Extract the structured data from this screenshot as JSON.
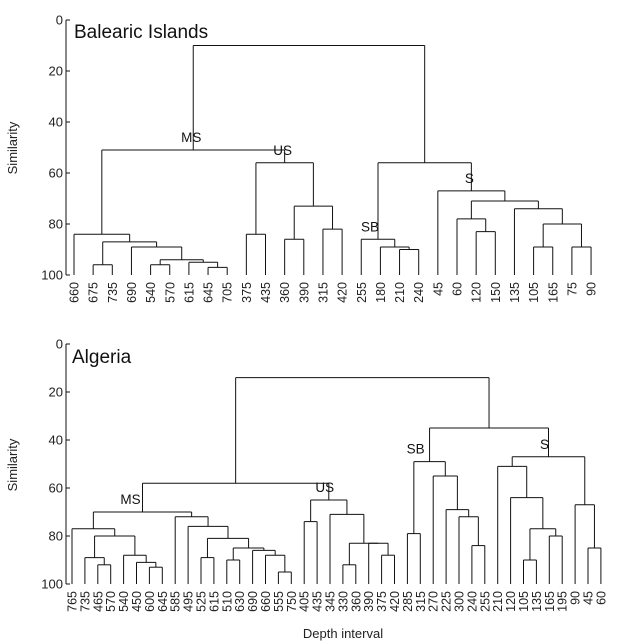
{
  "chart_data": [
    {
      "type": "dendrogram",
      "title": "Balearic Islands",
      "ylabel": "Similarity",
      "xlabel": "",
      "ylim": [
        0,
        100
      ],
      "y_ticks": [
        0,
        20,
        40,
        60,
        80,
        100
      ],
      "y_inverted": true,
      "leaves": [
        "660",
        "675",
        "735",
        "690",
        "540",
        "570",
        "615",
        "645",
        "705",
        "375",
        "435",
        "360",
        "390",
        "315",
        "420",
        "255",
        "180",
        "210",
        "240",
        "45",
        "60",
        "120",
        "150",
        "135",
        "105",
        "165",
        "75",
        "90"
      ],
      "cluster_labels": [
        {
          "text": "MS",
          "node": "MS"
        },
        {
          "text": "US",
          "node": "US"
        },
        {
          "text": "SB",
          "node": "SB"
        },
        {
          "text": "S",
          "node": "S"
        }
      ],
      "tree": {
        "h": 10,
        "c": [
          {
            "id": "MS",
            "h": 51,
            "c": [
              {
                "h": 84,
                "c": [
                  "660",
                  {
                    "h": 87,
                    "c": [
                      {
                        "h": 96,
                        "c": [
                          "675",
                          "735"
                        ]
                      },
                      {
                        "h": 89,
                        "c": [
                          "690",
                          {
                            "h": 94,
                            "c": [
                              {
                                "h": 96,
                                "c": [
                                  "540",
                                  "570"
                                ]
                              },
                              {
                                "h": 95,
                                "c": [
                                  "615",
                                  {
                                    "h": 97,
                                    "c": [
                                      "645",
                                      "705"
                                    ]
                                  }
                                ]
                              }
                            ]
                          }
                        ]
                      }
                    ]
                  }
                ]
              },
              {
                "id": "US",
                "h": 56,
                "c": [
                  {
                    "h": 84,
                    "c": [
                      "375",
                      "435"
                    ]
                  },
                  {
                    "h": 73,
                    "c": [
                      {
                        "h": 86,
                        "c": [
                          "360",
                          "390"
                        ]
                      },
                      {
                        "h": 82,
                        "c": [
                          "315",
                          "420"
                        ]
                      }
                    ]
                  }
                ]
              }
            ]
          },
          {
            "h": 56,
            "c": [
              {
                "id": "SB",
                "h": 86,
                "c": [
                  "255",
                  {
                    "h": 89,
                    "c": [
                      "180",
                      {
                        "h": 90,
                        "c": [
                          "210",
                          "240"
                        ]
                      }
                    ]
                  }
                ]
              },
              {
                "id": "S",
                "h": 67,
                "c": [
                  "45",
                  {
                    "h": 71,
                    "c": [
                      {
                        "h": 78,
                        "c": [
                          "60",
                          {
                            "h": 83,
                            "c": [
                              "120",
                              "150"
                            ]
                          }
                        ]
                      },
                      {
                        "h": 74,
                        "c": [
                          "135",
                          {
                            "h": 80,
                            "c": [
                              {
                                "h": 89,
                                "c": [
                                  "105",
                                  "165"
                                ]
                              },
                              {
                                "h": 89,
                                "c": [
                                  "75",
                                  "90"
                                ]
                              }
                            ]
                          }
                        ]
                      }
                    ]
                  }
                ]
              }
            ]
          }
        ]
      }
    },
    {
      "type": "dendrogram",
      "title": "Algeria",
      "ylabel": "Similarity",
      "xlabel": "Depth interval",
      "ylim": [
        0,
        100
      ],
      "y_ticks": [
        0,
        20,
        40,
        60,
        80,
        100
      ],
      "y_inverted": true,
      "leaves": [
        "765",
        "735",
        "465",
        "570",
        "540",
        "450",
        "600",
        "645",
        "585",
        "495",
        "525",
        "615",
        "510",
        "630",
        "690",
        "660",
        "555",
        "750",
        "405",
        "435",
        "345",
        "330",
        "360",
        "390",
        "375",
        "420",
        "285",
        "315",
        "270",
        "225",
        "300",
        "240",
        "255",
        "210",
        "120",
        "105",
        "135",
        "165",
        "195",
        "90",
        "45",
        "60"
      ],
      "cluster_labels": [
        {
          "text": "MS",
          "node": "MS"
        },
        {
          "text": "US",
          "node": "US"
        },
        {
          "text": "SB",
          "node": "SB"
        },
        {
          "text": "S",
          "node": "S"
        }
      ],
      "tree": {
        "h": 14,
        "c": [
          {
            "h": 58,
            "c": [
              {
                "id": "MS",
                "h": 70,
                "c": [
                  {
                    "h": 77,
                    "c": [
                      "765",
                      {
                        "h": 80,
                        "c": [
                          {
                            "h": 89,
                            "c": [
                              "735",
                              {
                                "h": 92,
                                "c": [
                                  "465",
                                  "570"
                                ]
                              }
                            ]
                          },
                          {
                            "h": 88,
                            "c": [
                              "540",
                              {
                                "h": 91,
                                "c": [
                                  "450",
                                  {
                                    "h": 93,
                                    "c": [
                                      "600",
                                      "645"
                                    ]
                                  }
                                ]
                              }
                            ]
                          }
                        ]
                      }
                    ]
                  },
                  {
                    "h": 72,
                    "c": [
                      "585",
                      {
                        "h": 76,
                        "c": [
                          "495",
                          {
                            "h": 81,
                            "c": [
                              {
                                "h": 89,
                                "c": [
                                  "525",
                                  "615"
                                ]
                              },
                              {
                                "h": 85,
                                "c": [
                                  {
                                    "h": 90,
                                    "c": [
                                      "510",
                                      "630"
                                    ]
                                  },
                                  {
                                    "h": 86,
                                    "c": [
                                      "690",
                                      {
                                        "h": 88,
                                        "c": [
                                          "660",
                                          {
                                            "h": 95,
                                            "c": [
                                              "555",
                                              "750"
                                            ]
                                          }
                                        ]
                                      }
                                    ]
                                  }
                                ]
                              }
                            ]
                          }
                        ]
                      }
                    ]
                  }
                ]
              },
              {
                "id": "US",
                "h": 65,
                "c": [
                  {
                    "h": 74,
                    "c": [
                      "405",
                      "435"
                    ]
                  },
                  {
                    "h": 71,
                    "c": [
                      "345",
                      {
                        "h": 83,
                        "c": [
                          {
                            "h": 92,
                            "c": [
                              "330",
                              "360"
                            ]
                          },
                          {
                            "h": 83,
                            "c": [
                              "390",
                              {
                                "h": 88,
                                "c": [
                                  "375",
                                  "420"
                                ]
                              }
                            ]
                          }
                        ]
                      }
                    ]
                  }
                ]
              }
            ]
          },
          {
            "h": 35,
            "c": [
              {
                "id": "SB",
                "h": 49,
                "c": [
                  {
                    "h": 79,
                    "c": [
                      "285",
                      "315"
                    ]
                  },
                  {
                    "h": 55,
                    "c": [
                      "270",
                      {
                        "h": 69,
                        "c": [
                          "225",
                          {
                            "h": 72,
                            "c": [
                              "300",
                              {
                                "h": 84,
                                "c": [
                                  "240",
                                  "255"
                                ]
                              }
                            ]
                          }
                        ]
                      }
                    ]
                  }
                ]
              },
              {
                "id": "S",
                "h": 47,
                "c": [
                  {
                    "h": 51,
                    "c": [
                      "210",
                      {
                        "h": 64,
                        "c": [
                          "120",
                          {
                            "h": 77,
                            "c": [
                              {
                                "h": 90,
                                "c": [
                                  "105",
                                  "135"
                                ]
                              },
                              {
                                "h": 80,
                                "c": [
                                  "165",
                                  "195"
                                ]
                              }
                            ]
                          }
                        ]
                      }
                    ]
                  },
                  {
                    "h": 67,
                    "c": [
                      "90",
                      {
                        "h": 85,
                        "c": [
                          "45",
                          "60"
                        ]
                      }
                    ]
                  }
                ]
              }
            ]
          }
        ]
      }
    }
  ]
}
